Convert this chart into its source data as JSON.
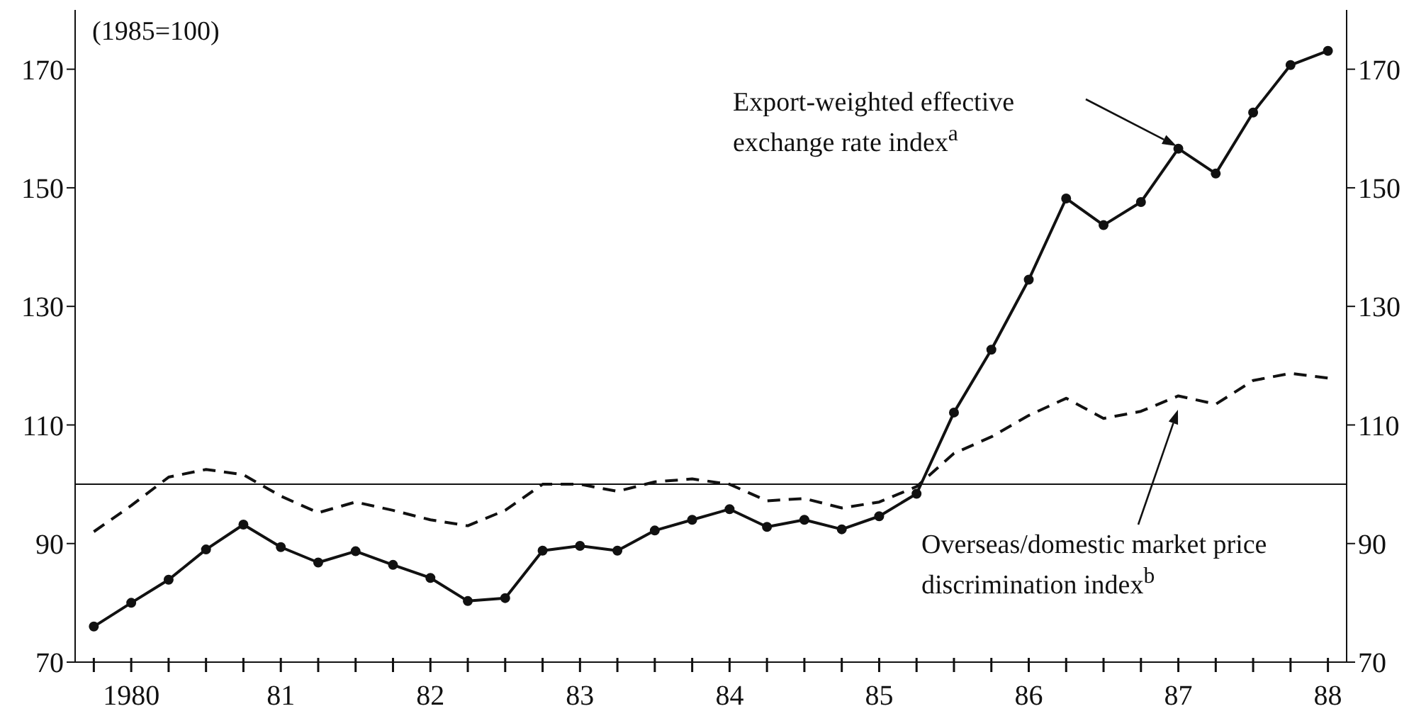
{
  "chart_data": {
    "type": "line",
    "annotations": [
      "(1985=100)",
      "Export-weighted effective exchange rate index$^{a}$",
      "Overseas/domestic market price discrimination index$^{b}$"
    ],
    "categories": [
      null,
      "1980",
      null,
      null,
      null,
      "81",
      null,
      null,
      null,
      "82",
      null,
      null,
      null,
      "83",
      null,
      null,
      null,
      "84",
      null,
      null,
      null,
      "85",
      null,
      null,
      null,
      "86",
      null,
      null,
      null,
      "87",
      null,
      null,
      null,
      "88"
    ],
    "series": [
      {
        "color": "#111111",
        "line_style": "solid",
        "marker": "circle",
        "values": [
          76.0,
          80.0,
          83.9,
          89.0,
          93.2,
          89.4,
          86.8,
          88.7,
          86.4,
          84.2,
          80.3,
          80.8,
          88.8,
          89.6,
          88.8,
          92.2,
          94.0,
          95.8,
          92.8,
          94.0,
          92.4,
          94.6,
          98.4,
          112.1,
          122.7,
          134.5,
          148.2,
          143.7,
          147.6,
          156.6,
          152.4,
          162.7,
          170.7,
          173.1
        ]
      },
      {
        "color": "#111111",
        "line_style": "dashed",
        "marker": "none",
        "values": [
          92.0,
          96.4,
          101.2,
          102.5,
          101.6,
          98.0,
          95.2,
          97.0,
          95.6,
          94.0,
          93.0,
          95.6,
          100.0,
          100.0,
          98.8,
          100.4,
          100.9,
          100.0,
          97.2,
          97.6,
          96.0,
          97.0,
          99.6,
          105.2,
          108.0,
          111.6,
          114.5,
          111.1,
          112.3,
          114.9,
          113.5,
          117.5,
          118.7,
          117.9
        ]
      }
    ],
    "ylim": [
      70,
      180
    ],
    "yticks": [
      70,
      90,
      110,
      130,
      150,
      170
    ],
    "y2lim": [
      70,
      180
    ],
    "y2ticks": [
      70,
      90,
      110,
      130,
      150,
      170
    ],
    "ref_lines": [
      {
        "axis": "y",
        "value": 100,
        "color": "#111111",
        "line_style": "solid"
      }
    ],
    "grid": false
  }
}
